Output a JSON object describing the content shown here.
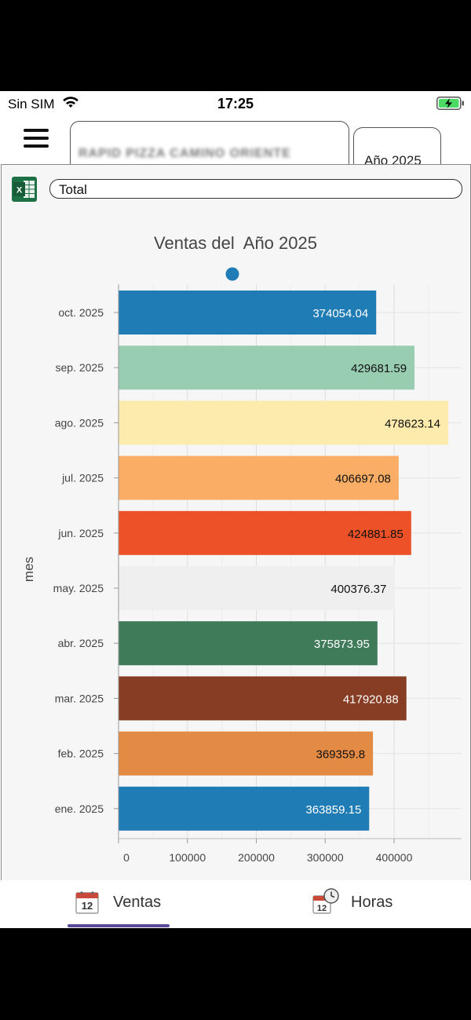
{
  "status": {
    "carrier": "Sin SIM",
    "time": "17:25"
  },
  "header": {
    "store": "RAPID PIZZA CAMINO ORIENTE",
    "year": "Año 2025"
  },
  "filter": {
    "selected": "Total"
  },
  "tabs": [
    {
      "label": "Ventas"
    },
    {
      "label": "Horas"
    }
  ],
  "colors": {
    "accent": "#5b4a9a",
    "legend": "#1f7cb4"
  },
  "chart_data": {
    "type": "bar",
    "orientation": "horizontal",
    "title": "Ventas del  Año 2025",
    "ylabel": "mes",
    "xlabel": "",
    "xlim": [
      0,
      480000
    ],
    "xticks": [
      0,
      100000,
      200000,
      300000,
      400000
    ],
    "xtick_labels": [
      "0",
      "100000",
      "200000",
      "300000",
      "400000"
    ],
    "grid": true,
    "categories": [
      "oct. 2025",
      "sep. 2025",
      "ago. 2025",
      "jul. 2025",
      "jun. 2025",
      "may. 2025",
      "abr. 2025",
      "mar. 2025",
      "feb. 2025",
      "ene. 2025"
    ],
    "values": [
      374054.04,
      429681.59,
      478623.14,
      406697.08,
      424881.85,
      400376.37,
      375873.95,
      417920.88,
      369359.8,
      363859.15
    ],
    "labels": [
      "374054.04",
      "429681.59",
      "478623.14",
      "406697.08",
      "424881.85",
      "400376.37",
      "375873.95",
      "417920.88",
      "369359.8",
      "363859.15"
    ],
    "colors": [
      "#1f7cb4",
      "#98cdb2",
      "#fdeaad",
      "#f9ad65",
      "#ec5128",
      "#efefef",
      "#3f7a59",
      "#873d23",
      "#e38a45",
      "#1f7cb4"
    ],
    "label_colors": [
      "#ffffff",
      "#111111",
      "#111111",
      "#111111",
      "#111111",
      "#111111",
      "#ffffff",
      "#ffffff",
      "#111111",
      "#ffffff"
    ]
  }
}
